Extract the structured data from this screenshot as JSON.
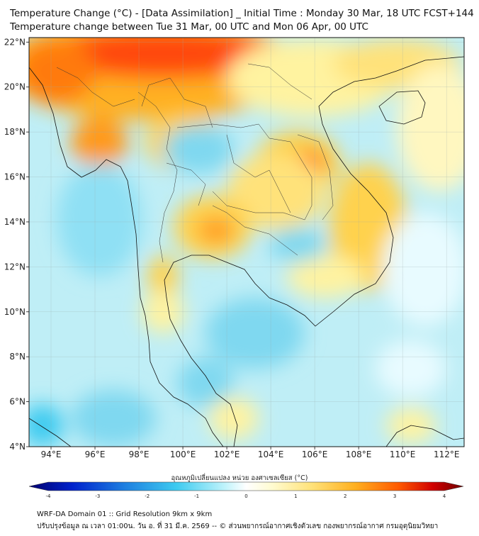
{
  "header": {
    "title_line1": "Temperature Change (°C) - [Data Assimilation] _ Initial Time : Monday 30 Mar, 18 UTC FCST+144",
    "title_line2": "Temperature change between Tue 31 Mar, 00 UTC and Mon 06 Apr, 00 UTC"
  },
  "map": {
    "lat_labels": [
      "22°N",
      "20°N",
      "18°N",
      "16°N",
      "14°N",
      "12°N",
      "10°N",
      "8°N",
      "6°N",
      "4°N"
    ],
    "lon_labels": [
      "94°E",
      "96°E",
      "98°E",
      "100°E",
      "102°E",
      "104°E",
      "106°E",
      "108°E",
      "110°E",
      "112°E"
    ],
    "lat_values": [
      22,
      20,
      18,
      16,
      14,
      12,
      10,
      8,
      6,
      4
    ],
    "lon_values": [
      94,
      96,
      98,
      100,
      102,
      104,
      106,
      108,
      110,
      112
    ],
    "lat_range": [
      4,
      22.2
    ],
    "lon_range": [
      93,
      112.8
    ],
    "grid": true
  },
  "colorbar": {
    "title": "อุณหภูมิเปลี่ยนแปลง หน่วย องศาเซลเซียส (°C)",
    "tick_labels": [
      "-4",
      "-3",
      "-2",
      "-1",
      "0",
      "1",
      "2",
      "3",
      "4"
    ],
    "tick_values": [
      -4,
      -3,
      -2,
      -1,
      0,
      1,
      2,
      3,
      4
    ],
    "range": [
      -4,
      4
    ],
    "colors": [
      "#00008b",
      "#0033cc",
      "#1e7fe0",
      "#3ecbf0",
      "#a8eef8",
      "#ffffff",
      "#fff7a0",
      "#ffd24d",
      "#ff9a1a",
      "#ff3a00",
      "#d60000",
      "#8b0000"
    ]
  },
  "footer": {
    "line1": "WRF-DA Domain 01 :: Grid Resolution 9km x 9km",
    "line2": "ปรับปรุงข้อมูล ณ เวลา 01:00น. วัน อ. ที่ 31 มี.ค. 2569 -- © ส่วนพยากรณ์อากาศเชิงตัวเลข กองพยากรณ์อากาศ กรมอุตุนิยมวิทยา"
  }
}
